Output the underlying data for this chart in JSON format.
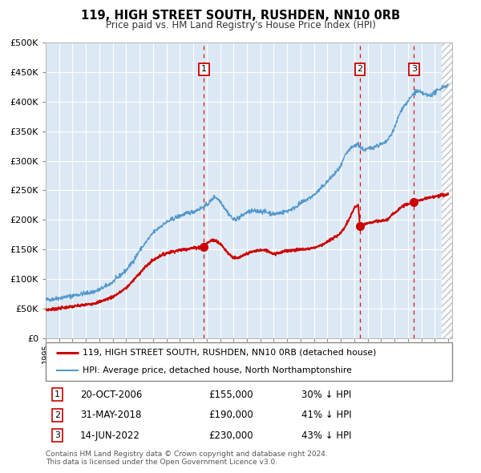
{
  "title": "119, HIGH STREET SOUTH, RUSHDEN, NN10 0RB",
  "subtitle": "Price paid vs. HM Land Registry's House Price Index (HPI)",
  "background_color": "#dce9f5",
  "red_line_color": "#cc0000",
  "blue_line_color": "#5599cc",
  "vline_color": "#cc0000",
  "sale_points": [
    {
      "date_num": 2006.8,
      "price": 155000,
      "label": "1"
    },
    {
      "date_num": 2018.42,
      "price": 190000,
      "label": "2"
    },
    {
      "date_num": 2022.45,
      "price": 230000,
      "label": "3"
    }
  ],
  "legend_entries": [
    "119, HIGH STREET SOUTH, RUSHDEN, NN10 0RB (detached house)",
    "HPI: Average price, detached house, North Northamptonshire"
  ],
  "table_rows": [
    {
      "num": "1",
      "date": "20-OCT-2006",
      "price": "£155,000",
      "hpi": "30% ↓ HPI"
    },
    {
      "num": "2",
      "date": "31-MAY-2018",
      "price": "£190,000",
      "hpi": "41% ↓ HPI"
    },
    {
      "num": "3",
      "date": "14-JUN-2022",
      "price": "£230,000",
      "hpi": "43% ↓ HPI"
    }
  ],
  "footer": "Contains HM Land Registry data © Crown copyright and database right 2024.\nThis data is licensed under the Open Government Licence v3.0.",
  "ylim": [
    0,
    500000
  ],
  "yticks": [
    0,
    50000,
    100000,
    150000,
    200000,
    250000,
    300000,
    350000,
    400000,
    450000,
    500000
  ],
  "xlim_start": 1995.0,
  "xlim_end": 2025.3
}
